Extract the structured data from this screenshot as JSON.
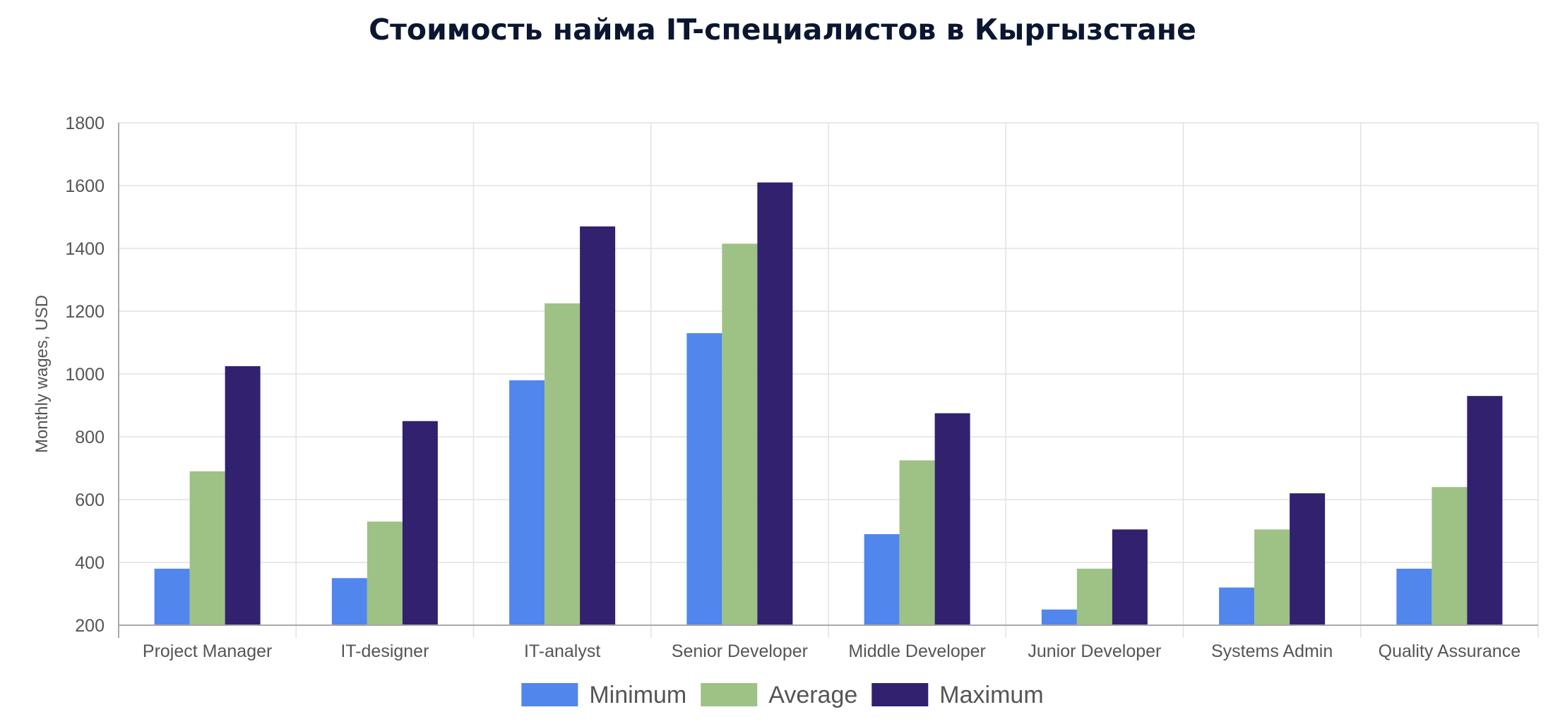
{
  "chart_data": {
    "type": "bar",
    "title": "Стоимость найма IT-специалистов в Кыргызстане",
    "xlabel": "",
    "ylabel": "Monthly wages, USD",
    "ylim": [
      200,
      1800
    ],
    "yticks": [
      200,
      400,
      600,
      800,
      1000,
      1200,
      1400,
      1600,
      1800
    ],
    "grid": true,
    "legend_position": "bottom",
    "categories": [
      "Project Manager",
      "IT-designer",
      "IT-analyst",
      "Senior Developer",
      "Middle Developer",
      "Junior Developer",
      "Systems Admin",
      "Quality Assurance"
    ],
    "series": [
      {
        "name": "Minimum",
        "color": "#5186ec",
        "values": [
          380,
          350,
          980,
          1130,
          490,
          250,
          320,
          380
        ]
      },
      {
        "name": "Average",
        "color": "#9ec185",
        "values": [
          690,
          530,
          1225,
          1415,
          725,
          380,
          505,
          640
        ]
      },
      {
        "name": "Maximum",
        "color": "#31216f",
        "values": [
          1025,
          850,
          1470,
          1610,
          875,
          505,
          620,
          930
        ]
      }
    ]
  }
}
